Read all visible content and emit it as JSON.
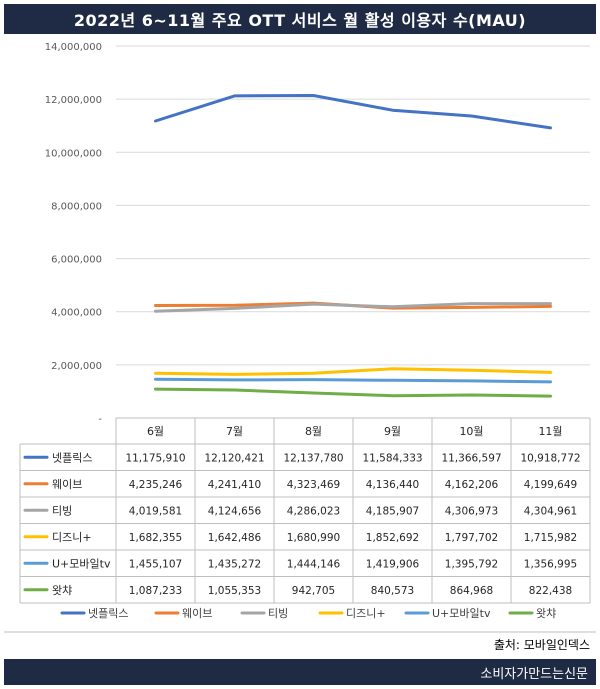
{
  "title": "2022년 6~11월 주요 OTT 서비스 월 활성 이용자 수(MAU)",
  "source": "출처: 모바일인덱스",
  "publisher": "소비자가만드는신문",
  "chart_data": {
    "type": "line",
    "title": "2022년 6~11월 주요 OTT 서비스 월 활성 이용자 수(MAU)",
    "categories": [
      "6월",
      "7월",
      "8월",
      "9월",
      "10월",
      "11월"
    ],
    "ylim": [
      0,
      14000000
    ],
    "yticks": [
      0,
      2000000,
      4000000,
      6000000,
      8000000,
      10000000,
      12000000,
      14000000
    ],
    "ytick_labels": [
      "-",
      "2,000,000",
      "4,000,000",
      "6,000,000",
      "8,000,000",
      "10,000,000",
      "12,000,000",
      "14,000,000"
    ],
    "grid": true,
    "legend": "bottom",
    "series": [
      {
        "name": "넷플릭스",
        "color": "#4472c4",
        "values": [
          11175910,
          12120421,
          12137780,
          11584333,
          11366597,
          10918772
        ],
        "labels": [
          "11,175,910",
          "12,120,421",
          "12,137,780",
          "11,584,333",
          "11,366,597",
          "10,918,772"
        ]
      },
      {
        "name": "웨이브",
        "color": "#ed7d31",
        "values": [
          4235246,
          4241410,
          4323469,
          4136440,
          4162206,
          4199649
        ],
        "labels": [
          "4,235,246",
          "4,241,410",
          "4,323,469",
          "4,136,440",
          "4,162,206",
          "4,199,649"
        ]
      },
      {
        "name": "티빙",
        "color": "#a5a5a5",
        "values": [
          4019581,
          4124656,
          4286023,
          4185907,
          4306973,
          4304961
        ],
        "labels": [
          "4,019,581",
          "4,124,656",
          "4,286,023",
          "4,185,907",
          "4,306,973",
          "4,304,961"
        ]
      },
      {
        "name": "디즈니+",
        "color": "#ffc000",
        "values": [
          1682355,
          1642486,
          1680990,
          1852692,
          1797702,
          1715982
        ],
        "labels": [
          "1,682,355",
          "1,642,486",
          "1,680,990",
          "1,852,692",
          "1,797,702",
          "1,715,982"
        ]
      },
      {
        "name": "U+모바일tv",
        "color": "#5b9bd5",
        "values": [
          1455107,
          1435272,
          1444146,
          1419906,
          1395792,
          1356995
        ],
        "labels": [
          "1,455,107",
          "1,435,272",
          "1,444,146",
          "1,419,906",
          "1,395,792",
          "1,356,995"
        ]
      },
      {
        "name": "왓챠",
        "color": "#70ad47",
        "values": [
          1087233,
          1055353,
          942705,
          840573,
          864968,
          822438
        ],
        "labels": [
          "1,087,233",
          "1,055,353",
          "942,705",
          "840,573",
          "864,968",
          "822,438"
        ]
      }
    ]
  }
}
